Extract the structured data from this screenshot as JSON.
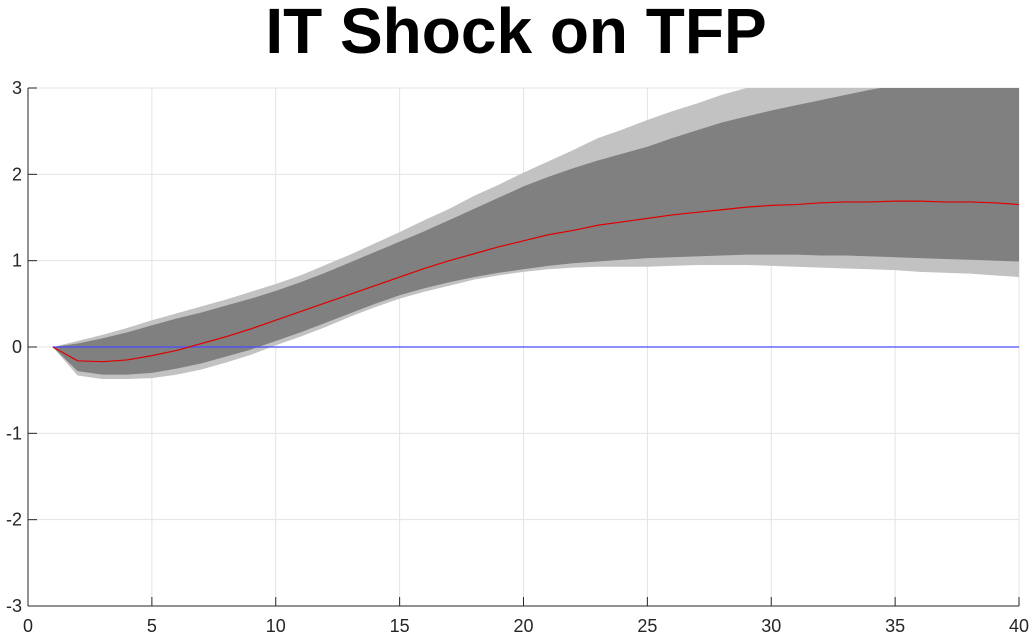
{
  "chart_data": {
    "type": "area",
    "title": "IT Shock on TFP",
    "xlabel": "",
    "ylabel": "",
    "xlim": [
      0,
      40
    ],
    "ylim": [
      -3,
      3
    ],
    "xticks": [
      0,
      5,
      10,
      15,
      20,
      25,
      30,
      35,
      40
    ],
    "yticks": [
      -3,
      -2,
      -1,
      0,
      1,
      2,
      3
    ],
    "grid": true,
    "legend": "none",
    "colors": {
      "outer_band": "#c2c2c2",
      "inner_band": "#808080",
      "median_line": "#e00000",
      "zero_line": "#4a4aff",
      "grid": "#e3e3e3",
      "axis": "#262626"
    },
    "x": [
      1,
      2,
      3,
      4,
      5,
      6,
      7,
      8,
      9,
      10,
      11,
      12,
      13,
      14,
      15,
      16,
      17,
      18,
      19,
      20,
      21,
      22,
      23,
      24,
      25,
      26,
      27,
      28,
      29,
      30,
      31,
      32,
      33,
      34,
      35,
      36,
      37,
      38,
      39,
      40
    ],
    "series": [
      {
        "role": "outer_band",
        "upper": [
          0.0,
          0.07,
          0.14,
          0.22,
          0.31,
          0.39,
          0.47,
          0.55,
          0.64,
          0.73,
          0.83,
          0.95,
          1.07,
          1.2,
          1.33,
          1.47,
          1.6,
          1.75,
          1.88,
          2.02,
          2.15,
          2.28,
          2.42,
          2.52,
          2.63,
          2.73,
          2.82,
          2.92,
          3.0,
          3.05,
          3.08,
          3.1,
          3.12,
          3.14,
          3.15,
          3.16,
          3.17,
          3.18,
          3.19,
          3.2
        ],
        "lower": [
          0.0,
          -0.33,
          -0.37,
          -0.37,
          -0.36,
          -0.32,
          -0.26,
          -0.18,
          -0.09,
          0.02,
          0.12,
          0.23,
          0.35,
          0.46,
          0.56,
          0.64,
          0.71,
          0.78,
          0.83,
          0.87,
          0.9,
          0.92,
          0.93,
          0.93,
          0.93,
          0.94,
          0.95,
          0.95,
          0.95,
          0.94,
          0.93,
          0.92,
          0.91,
          0.9,
          0.89,
          0.87,
          0.86,
          0.85,
          0.83,
          0.81
        ]
      },
      {
        "role": "inner_band",
        "upper": [
          0.0,
          0.04,
          0.1,
          0.17,
          0.25,
          0.33,
          0.4,
          0.48,
          0.56,
          0.65,
          0.75,
          0.86,
          0.98,
          1.1,
          1.22,
          1.34,
          1.47,
          1.6,
          1.73,
          1.86,
          1.97,
          2.07,
          2.16,
          2.24,
          2.32,
          2.42,
          2.51,
          2.6,
          2.67,
          2.74,
          2.8,
          2.86,
          2.92,
          2.98,
          3.03,
          3.08,
          3.12,
          3.16,
          3.18,
          3.2
        ],
        "lower": [
          0.0,
          -0.28,
          -0.32,
          -0.32,
          -0.3,
          -0.25,
          -0.19,
          -0.11,
          -0.03,
          0.07,
          0.17,
          0.28,
          0.39,
          0.5,
          0.6,
          0.68,
          0.75,
          0.81,
          0.86,
          0.9,
          0.94,
          0.97,
          0.99,
          1.01,
          1.03,
          1.04,
          1.05,
          1.06,
          1.07,
          1.07,
          1.07,
          1.06,
          1.06,
          1.05,
          1.04,
          1.03,
          1.02,
          1.01,
          1.0,
          0.99
        ]
      },
      {
        "role": "median_line",
        "values": [
          0.0,
          -0.16,
          -0.17,
          -0.15,
          -0.1,
          -0.04,
          0.04,
          0.12,
          0.21,
          0.31,
          0.41,
          0.51,
          0.61,
          0.71,
          0.81,
          0.91,
          1.0,
          1.08,
          1.16,
          1.23,
          1.3,
          1.35,
          1.41,
          1.45,
          1.49,
          1.53,
          1.56,
          1.59,
          1.62,
          1.64,
          1.65,
          1.67,
          1.68,
          1.68,
          1.69,
          1.69,
          1.68,
          1.68,
          1.67,
          1.65
        ]
      },
      {
        "role": "zero_line",
        "values": [
          0,
          0,
          0,
          0,
          0,
          0,
          0,
          0,
          0,
          0,
          0,
          0,
          0,
          0,
          0,
          0,
          0,
          0,
          0,
          0,
          0,
          0,
          0,
          0,
          0,
          0,
          0,
          0,
          0,
          0,
          0,
          0,
          0,
          0,
          0,
          0,
          0,
          0,
          0,
          0
        ]
      }
    ]
  }
}
